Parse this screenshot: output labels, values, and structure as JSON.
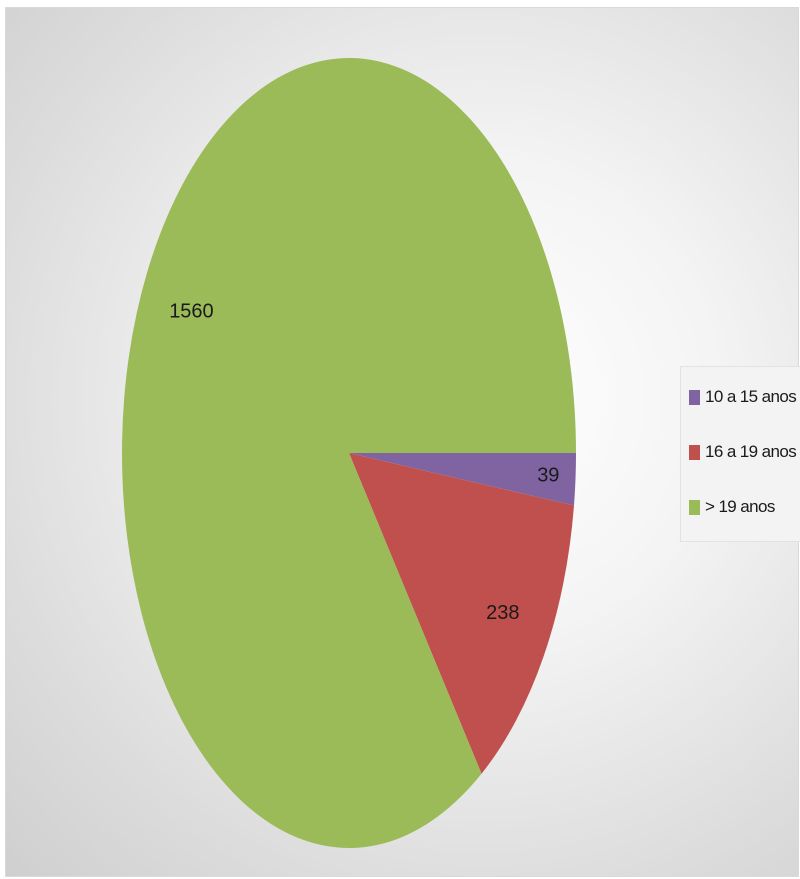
{
  "chart_data": {
    "type": "pie",
    "categories": [
      "10 a 15 anos",
      "16 a 19 anos",
      "> 19 anos"
    ],
    "values": [
      39,
      238,
      1560
    ],
    "data_labels": [
      "39",
      "238",
      "1560"
    ],
    "colors": [
      "#8064a2",
      "#c0504d",
      "#9bbb59"
    ],
    "legend_position": "right",
    "title": ""
  }
}
